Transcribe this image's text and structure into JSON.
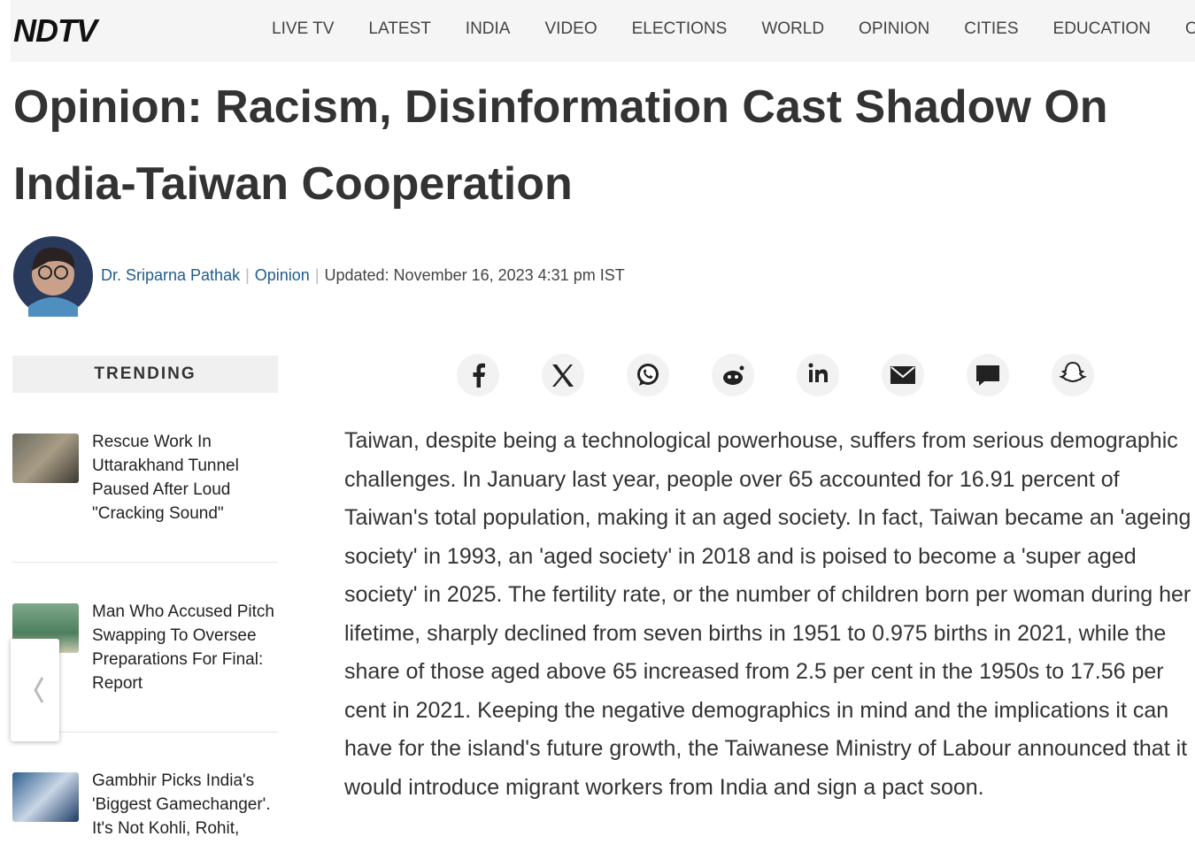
{
  "header": {
    "logo": "NDTV",
    "nav": [
      "LIVE TV",
      "LATEST",
      "INDIA",
      "VIDEO",
      "ELECTIONS",
      "WORLD",
      "OPINION",
      "CITIES",
      "EDUCATION",
      "OFFBEAT"
    ]
  },
  "article": {
    "headline": "Opinion: Racism, Disinformation Cast Shadow On India-Taiwan Cooperation",
    "author": "Dr. Sriparna Pathak",
    "category": "Opinion",
    "updated": "Updated: November 16, 2023 4:31 pm IST",
    "body": "Taiwan, despite being a technological powerhouse, suffers from serious demographic challenges. In January last year, people over 65 accounted for 16.91 percent of Taiwan's total population, making it an aged society. In fact, Taiwan became an 'ageing society' in 1993, an 'aged society' in 2018 and is poised to become a 'super aged society' in 2025. The fertility rate, or the number of children born per woman during her lifetime, sharply declined from seven births in 1951 to 0.975 births in 2021, while the share of those aged above 65 increased from 2.5 per cent in the 1950s to 17.56 per cent in 2021. Keeping the negative demographics in mind and the implications it can have for the island's future growth, the Taiwanese Ministry of Labour announced that it would introduce migrant workers from India and sign a pact soon."
  },
  "trending": {
    "heading": "TRENDING",
    "items": [
      "Rescue Work In Uttarakhand Tunnel Paused After Loud \"Cracking Sound\"",
      "Man Who Accused Pitch Swapping To Oversee Preparations For Final: Report",
      "Gambhir Picks India's 'Biggest Gamechanger'. It's Not Kohli, Rohit,"
    ]
  }
}
